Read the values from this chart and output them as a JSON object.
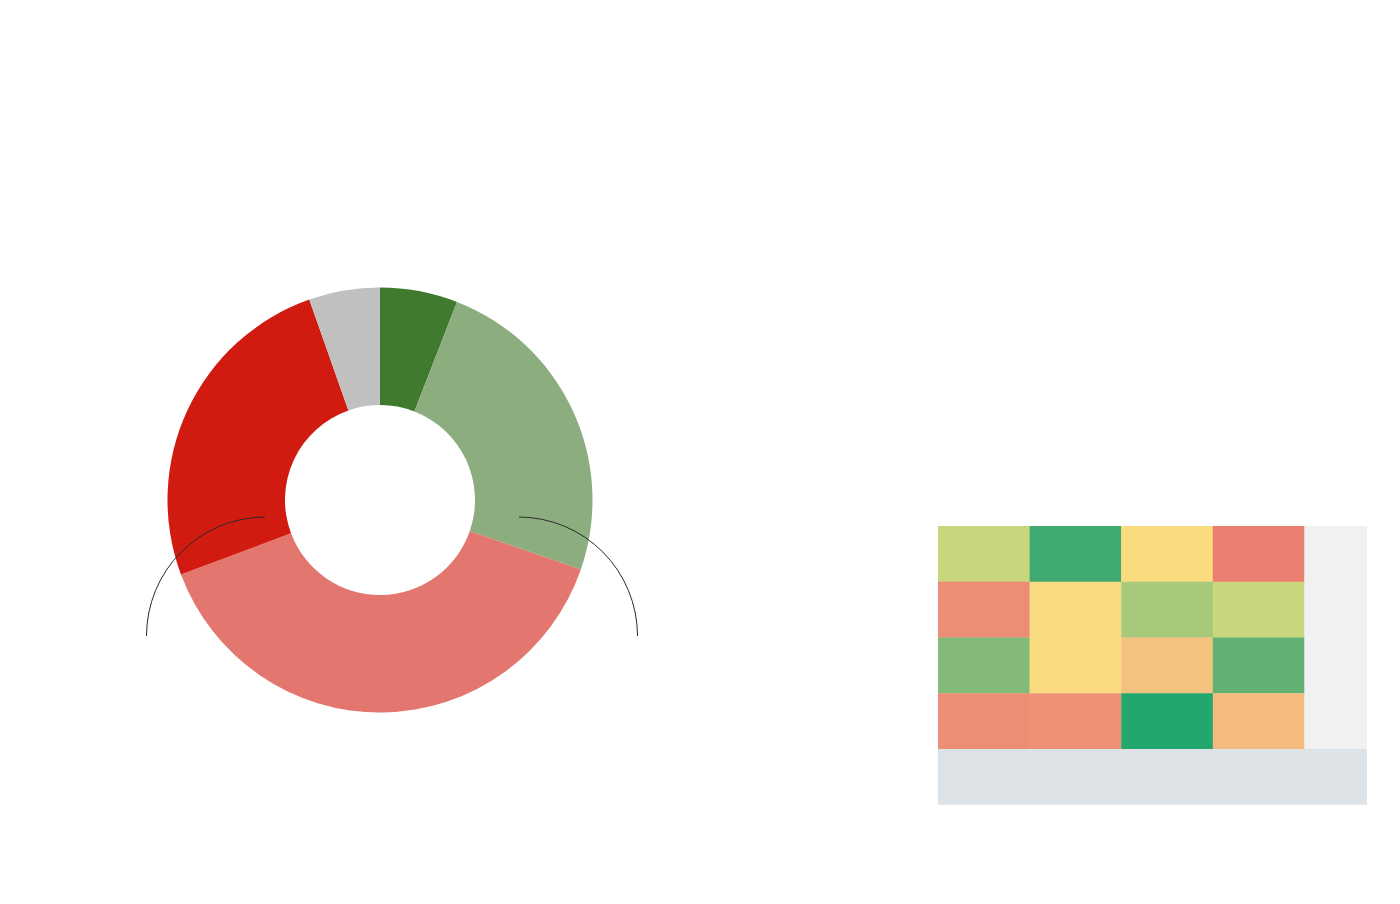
{
  "chart_data": {
    "type": "donut",
    "categories": [
      null,
      null,
      null,
      null,
      null
    ],
    "values": [
      5.9,
      24.4,
      39.0,
      25.3,
      5.4
    ],
    "colors": [
      "#407a2e",
      "#8cae7f",
      "#e3776f",
      "#d11a10",
      "#c0c0c0"
    ]
  }
}
